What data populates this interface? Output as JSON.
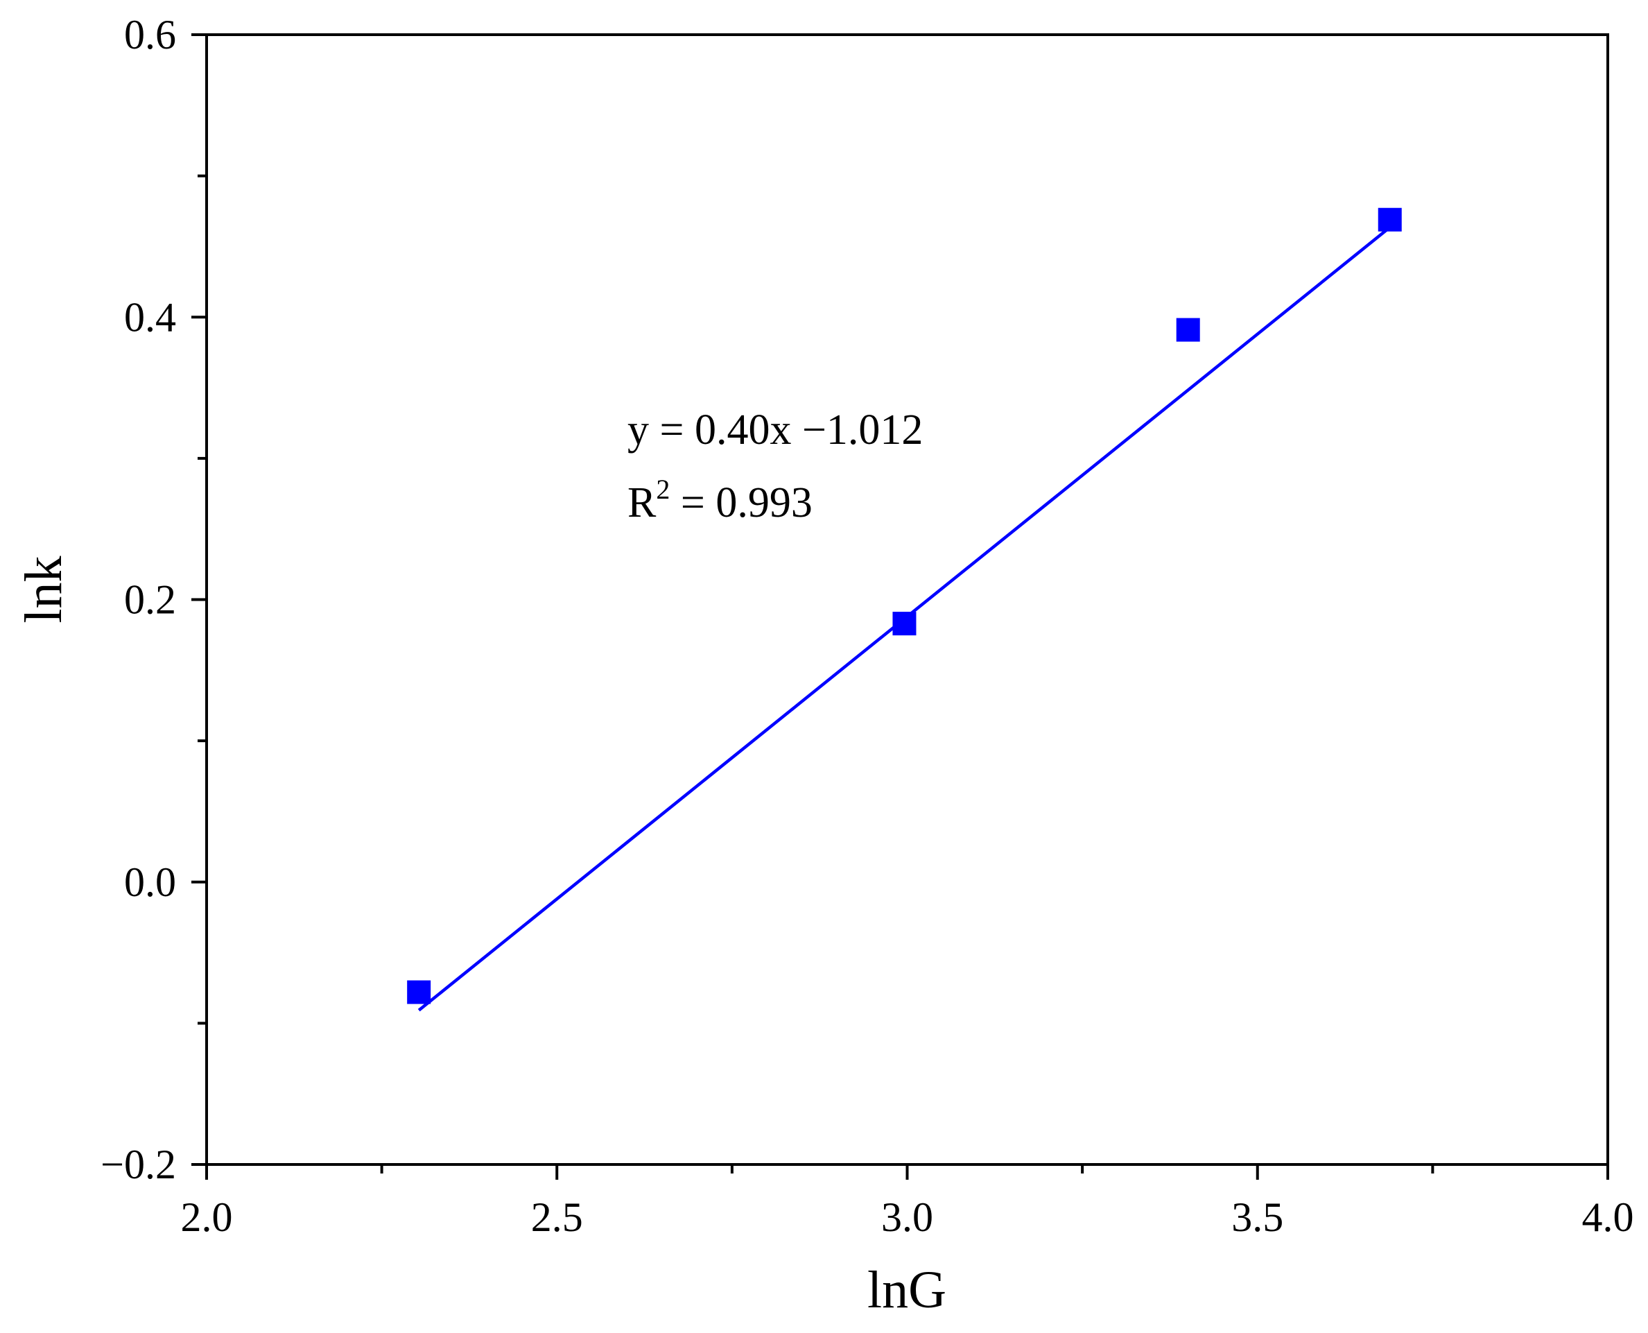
{
  "chart_data": {
    "type": "scatter",
    "title": "",
    "xlabel": "lnG",
    "ylabel": "lnk",
    "xlim": [
      2.0,
      4.0
    ],
    "ylim": [
      -0.2,
      0.6
    ],
    "x_major_ticks": [
      2.0,
      2.5,
      3.0,
      3.5,
      4.0
    ],
    "x_tick_labels": [
      "2.0",
      "2.5",
      "3.0",
      "3.5",
      "4.0"
    ],
    "x_minor_ticks": [
      2.25,
      2.75,
      3.25,
      3.75
    ],
    "y_major_ticks": [
      -0.2,
      0.0,
      0.2,
      0.4,
      0.6
    ],
    "y_tick_labels": [
      "−0.2",
      "0.0",
      "0.2",
      "0.4",
      "0.6"
    ],
    "y_minor_ticks": [
      -0.1,
      0.1,
      0.3,
      0.5
    ],
    "grid": false,
    "legend": "none",
    "series": [
      {
        "marker": "square",
        "color": "#0000ff",
        "points": [
          {
            "x": 2.303,
            "y": -0.078
          },
          {
            "x": 2.996,
            "y": 0.183
          },
          {
            "x": 3.401,
            "y": 0.391
          },
          {
            "x": 3.689,
            "y": 0.469
          }
        ]
      }
    ],
    "fit_line": {
      "color": "#0000ff",
      "slope": 0.4,
      "intercept": -1.012,
      "x_range": [
        2.303,
        3.689
      ]
    },
    "annotation": {
      "equation": "y = 0.40x −1.012",
      "r2_label": "R",
      "r2_sup": "2",
      "r2_value": " = 0.993"
    },
    "colors": {
      "axes": "#000000",
      "series": "#0000ff"
    }
  }
}
